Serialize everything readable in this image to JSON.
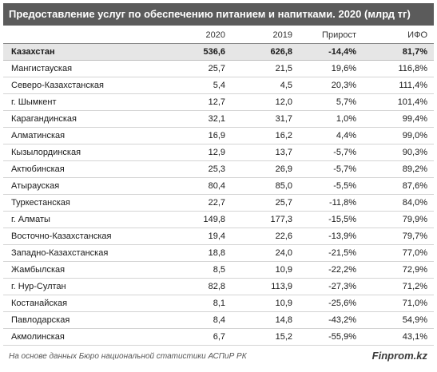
{
  "title": "Предоставление услуг по обеспечению питанием и напитками. 2020 (млрд тг)",
  "columns": [
    "",
    "2020",
    "2019",
    "Прирост",
    "ИФО"
  ],
  "total": {
    "region": "Казахстан",
    "v2020": "536,6",
    "v2019": "626,8",
    "growth": "-14,4%",
    "ifo": "81,7%"
  },
  "rows": [
    {
      "region": "Мангистауская",
      "v2020": "25,7",
      "v2019": "21,5",
      "growth": "19,6%",
      "ifo": "116,8%"
    },
    {
      "region": "Северо-Казахстанская",
      "v2020": "5,4",
      "v2019": "4,5",
      "growth": "20,3%",
      "ifo": "111,4%"
    },
    {
      "region": "г. Шымкент",
      "v2020": "12,7",
      "v2019": "12,0",
      "growth": "5,7%",
      "ifo": "101,4%"
    },
    {
      "region": "Карагандинская",
      "v2020": "32,1",
      "v2019": "31,7",
      "growth": "1,0%",
      "ifo": "99,4%"
    },
    {
      "region": "Алматинская",
      "v2020": "16,9",
      "v2019": "16,2",
      "growth": "4,4%",
      "ifo": "99,0%"
    },
    {
      "region": "Кызылординская",
      "v2020": "12,9",
      "v2019": "13,7",
      "growth": "-5,7%",
      "ifo": "90,3%"
    },
    {
      "region": "Актюбинская",
      "v2020": "25,3",
      "v2019": "26,9",
      "growth": "-5,7%",
      "ifo": "89,2%"
    },
    {
      "region": "Атырауская",
      "v2020": "80,4",
      "v2019": "85,0",
      "growth": "-5,5%",
      "ifo": "87,6%"
    },
    {
      "region": "Туркестанская",
      "v2020": "22,7",
      "v2019": "25,7",
      "growth": "-11,8%",
      "ifo": "84,0%"
    },
    {
      "region": "г. Алматы",
      "v2020": "149,8",
      "v2019": "177,3",
      "growth": "-15,5%",
      "ifo": "79,9%"
    },
    {
      "region": "Восточно-Казахстанская",
      "v2020": "19,4",
      "v2019": "22,6",
      "growth": "-13,9%",
      "ifo": "79,7%"
    },
    {
      "region": "Западно-Казахстанская",
      "v2020": "18,8",
      "v2019": "24,0",
      "growth": "-21,5%",
      "ifo": "77,0%"
    },
    {
      "region": "Жамбылская",
      "v2020": "8,5",
      "v2019": "10,9",
      "growth": "-22,2%",
      "ifo": "72,9%"
    },
    {
      "region": "г. Нур-Султан",
      "v2020": "82,8",
      "v2019": "113,9",
      "growth": "-27,3%",
      "ifo": "71,2%"
    },
    {
      "region": "Костанайская",
      "v2020": "8,1",
      "v2019": "10,9",
      "growth": "-25,6%",
      "ifo": "71,0%"
    },
    {
      "region": "Павлодарская",
      "v2020": "8,4",
      "v2019": "14,8",
      "growth": "-43,2%",
      "ifo": "54,9%"
    },
    {
      "region": "Акмолинская",
      "v2020": "6,7",
      "v2019": "15,2",
      "growth": "-55,9%",
      "ifo": "43,1%"
    }
  ],
  "footer": {
    "source": "На основе данных Бюро национальной статистики АСПиР РК",
    "brand": "Finprom.kz"
  }
}
